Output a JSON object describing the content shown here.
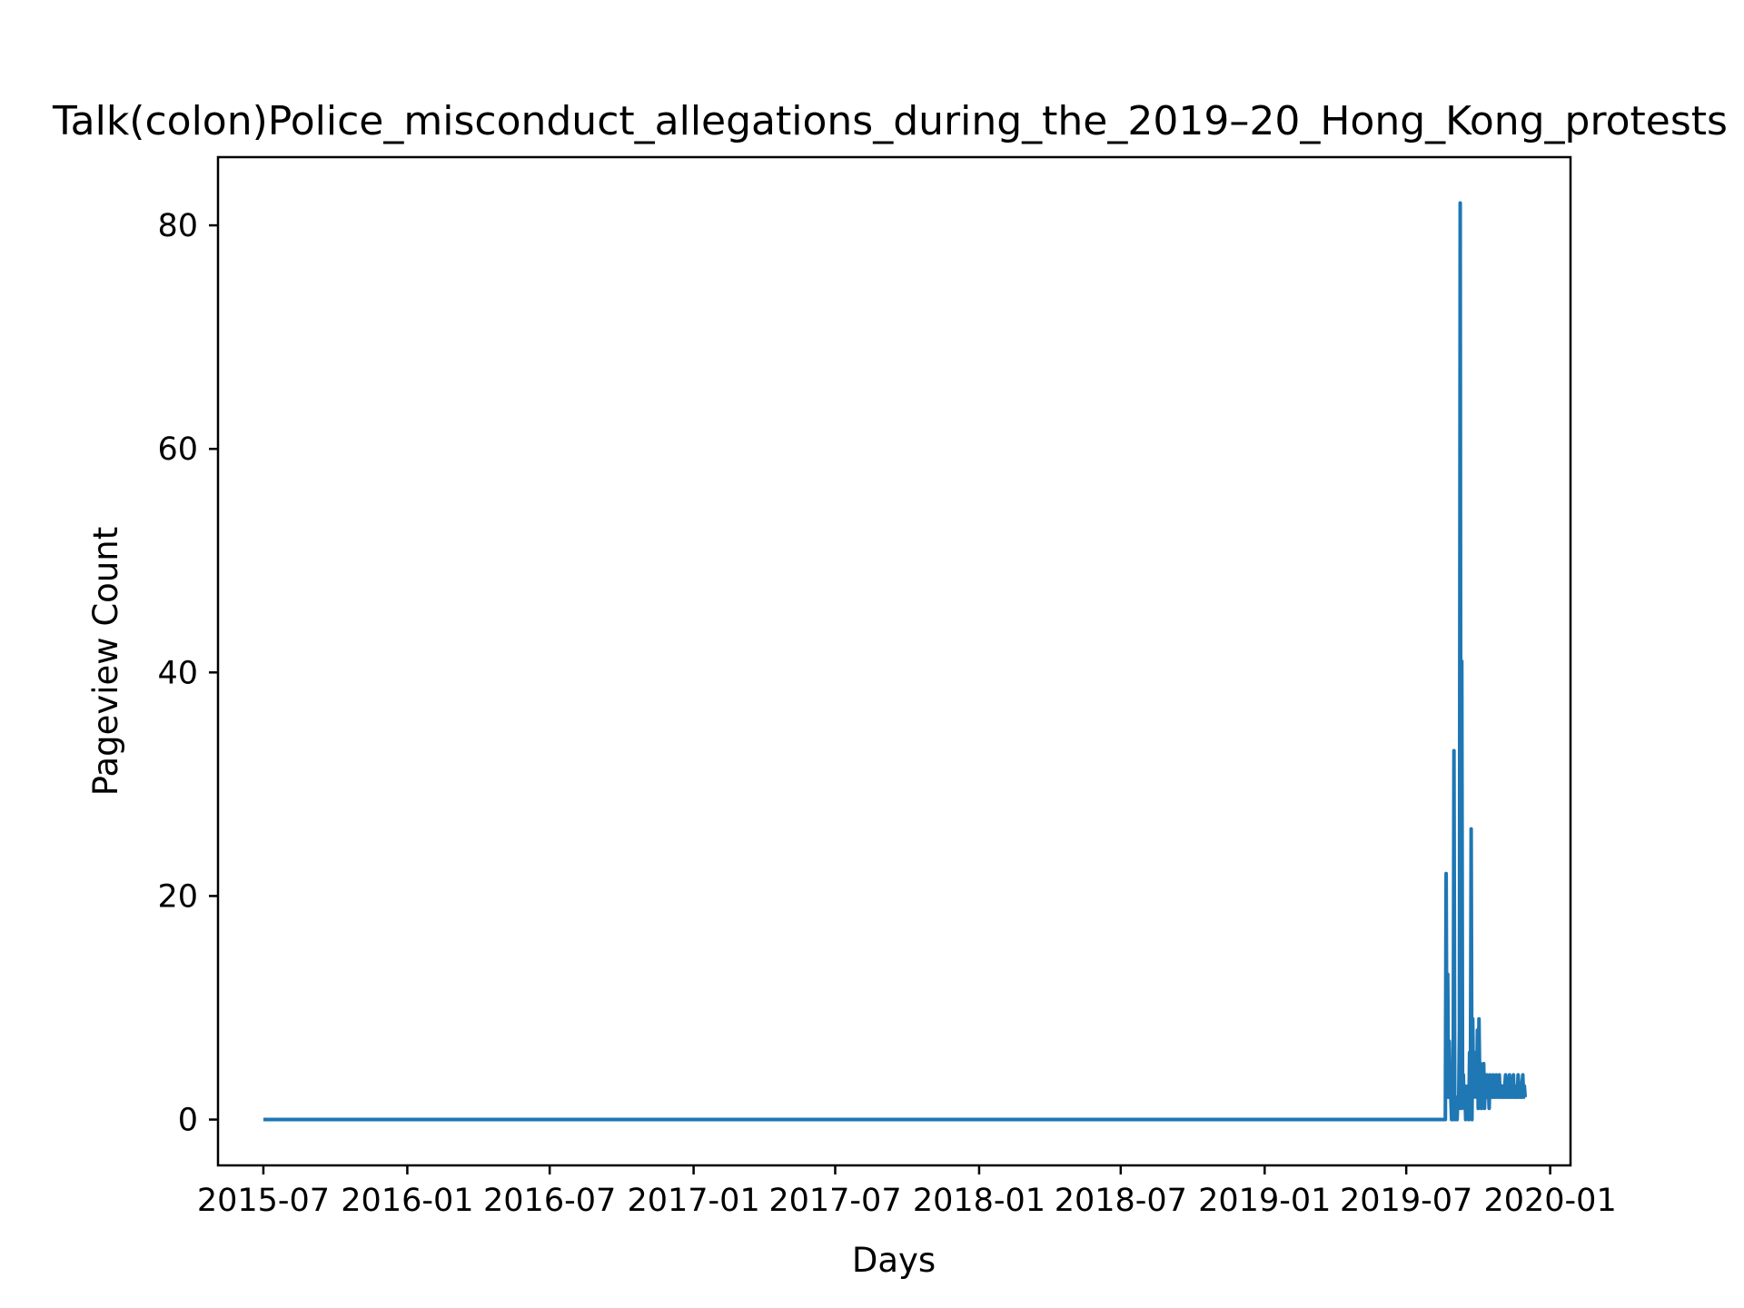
{
  "chart_data": {
    "type": "line",
    "title": "Talk(colon)Police_misconduct_allegations_during_the_2019–20_Hong_Kong_protests",
    "xlabel": "Days",
    "ylabel": "Pageview Count",
    "x_tick_labels": [
      "2015-07",
      "2016-01",
      "2016-07",
      "2017-01",
      "2017-07",
      "2018-01",
      "2018-07",
      "2019-01",
      "2019-07",
      "2020-01"
    ],
    "y_tick_values": [
      0,
      20,
      40,
      60,
      80
    ],
    "xlim": [
      "2015-05-04",
      "2020-01-27"
    ],
    "ylim": [
      -4.1,
      86.1
    ],
    "grid": false,
    "legend": "none",
    "color": "#1f77b4",
    "series": [
      {
        "x": [
          "2015-07-01",
          "2019-08-20",
          "2019-08-21",
          "2019-08-22",
          "2019-08-23",
          "2019-08-24",
          "2019-08-25",
          "2019-08-26",
          "2019-08-27",
          "2019-08-28",
          "2019-08-29",
          "2019-08-30",
          "2019-08-31",
          "2019-09-01",
          "2019-09-02",
          "2019-09-03",
          "2019-09-04",
          "2019-09-05",
          "2019-09-06",
          "2019-09-07",
          "2019-09-08",
          "2019-09-09",
          "2019-09-10",
          "2019-09-11",
          "2019-09-12",
          "2019-09-13",
          "2019-09-14",
          "2019-09-15",
          "2019-09-16",
          "2019-09-17",
          "2019-09-18",
          "2019-09-19",
          "2019-09-20",
          "2019-09-21",
          "2019-09-22",
          "2019-09-23",
          "2019-09-24",
          "2019-09-25",
          "2019-09-26",
          "2019-09-27",
          "2019-09-28",
          "2019-09-29",
          "2019-09-30",
          "2019-10-01",
          "2019-10-02",
          "2019-10-03",
          "2019-10-04",
          "2019-10-05",
          "2019-10-06",
          "2019-10-07",
          "2019-10-08",
          "2019-10-09",
          "2019-10-10",
          "2019-10-11",
          "2019-10-12",
          "2019-10-13",
          "2019-10-14",
          "2019-10-15",
          "2019-10-16",
          "2019-10-17",
          "2019-10-18",
          "2019-10-19",
          "2019-10-20",
          "2019-10-21",
          "2019-10-22",
          "2019-10-23",
          "2019-10-24",
          "2019-10-25",
          "2019-10-26",
          "2019-10-27",
          "2019-10-28",
          "2019-10-29",
          "2019-10-30",
          "2019-10-31",
          "2019-11-01",
          "2019-11-02",
          "2019-11-03",
          "2019-11-04",
          "2019-11-05",
          "2019-11-06",
          "2019-11-07",
          "2019-11-08",
          "2019-11-09",
          "2019-11-10",
          "2019-11-11",
          "2019-11-12",
          "2019-11-13",
          "2019-11-14",
          "2019-11-15",
          "2019-11-16",
          "2019-11-17",
          "2019-11-18",
          "2019-11-19",
          "2019-11-20",
          "2019-11-21",
          "2019-11-22",
          "2019-11-23",
          "2019-11-24",
          "2019-11-25",
          "2019-11-26",
          "2019-11-27",
          "2019-11-28",
          "2019-11-29",
          "2019-11-30"
        ],
        "y": [
          0,
          0,
          22,
          3,
          13,
          2,
          7,
          3,
          2,
          0,
          2,
          0,
          33,
          1,
          0,
          2,
          0,
          2,
          1,
          8,
          82,
          1,
          41,
          2,
          4,
          1,
          3,
          0,
          2,
          1,
          3,
          0,
          6,
          1,
          26,
          0,
          9,
          2,
          5,
          3,
          6,
          2,
          8,
          1,
          9,
          3,
          5,
          1,
          4,
          2,
          5,
          1,
          3,
          2,
          4,
          2,
          3,
          1,
          4,
          2,
          3,
          2,
          4,
          2,
          3,
          2,
          4,
          3,
          2,
          3,
          4,
          2,
          3,
          3,
          2,
          3,
          2,
          3,
          4,
          2,
          3,
          2,
          3,
          4,
          2,
          3,
          2,
          3,
          4,
          2,
          3,
          2,
          3,
          2,
          4,
          3,
          2,
          3,
          2,
          3,
          4,
          2,
          3,
          2
        ]
      }
    ]
  }
}
